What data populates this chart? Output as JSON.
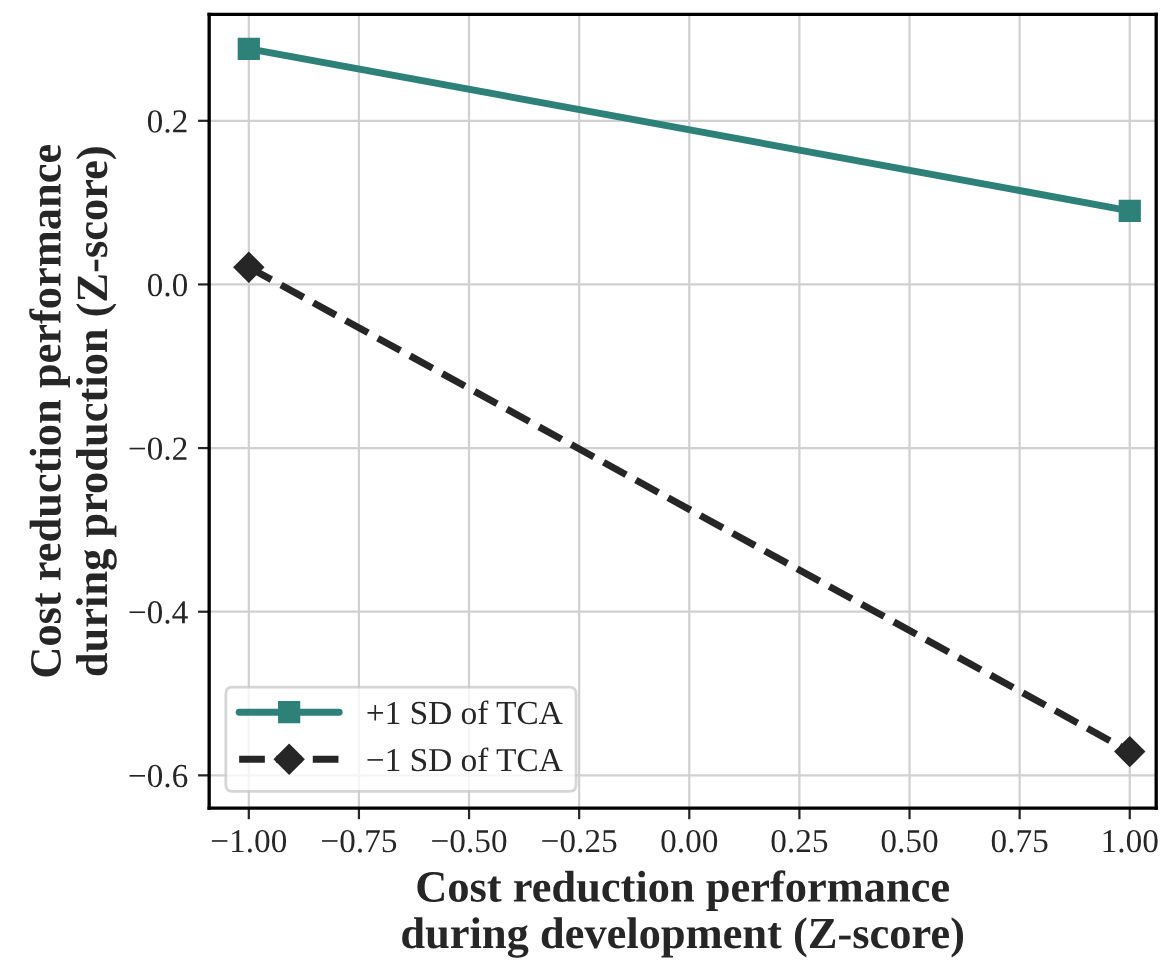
{
  "chart_data": {
    "type": "line",
    "xlabel": "Cost reduction performance\nduring development (Z-score)",
    "ylabel": "Cost reduction performance\nduring production (Z-score)",
    "x": [
      -1,
      1
    ],
    "series": [
      {
        "name": "+1 SD of TCA",
        "color": "#2e8179",
        "values": [
          0.288,
          0.09
        ],
        "marker": "square",
        "line_style": "solid"
      },
      {
        "name": "−1 SD of TCA",
        "color": "#262626",
        "values": [
          0.021,
          -0.571
        ],
        "marker": "diamond",
        "line_style": "dashed"
      }
    ],
    "xlim": [
      -1.09,
      1.06
    ],
    "ylim": [
      -0.64,
      0.33
    ],
    "xticks": [
      {
        "value": -1,
        "label": "−1.00"
      },
      {
        "value": -0.75,
        "label": "−0.75"
      },
      {
        "value": -0.5,
        "label": "−0.50"
      },
      {
        "value": -0.25,
        "label": "−0.25"
      },
      {
        "value": 0,
        "label": "0.00"
      },
      {
        "value": 0.25,
        "label": "0.25"
      },
      {
        "value": 0.5,
        "label": "0.50"
      },
      {
        "value": 0.75,
        "label": "0.75"
      },
      {
        "value": 1,
        "label": "1.00"
      }
    ],
    "yticks": [
      {
        "value": -0.6,
        "label": "−0.6"
      },
      {
        "value": -0.4,
        "label": "−0.4"
      },
      {
        "value": -0.2,
        "label": "−0.2"
      },
      {
        "value": 0,
        "label": "0.0"
      },
      {
        "value": 0.2,
        "label": "0.2"
      }
    ],
    "grid": true,
    "legend": "bottom left"
  }
}
